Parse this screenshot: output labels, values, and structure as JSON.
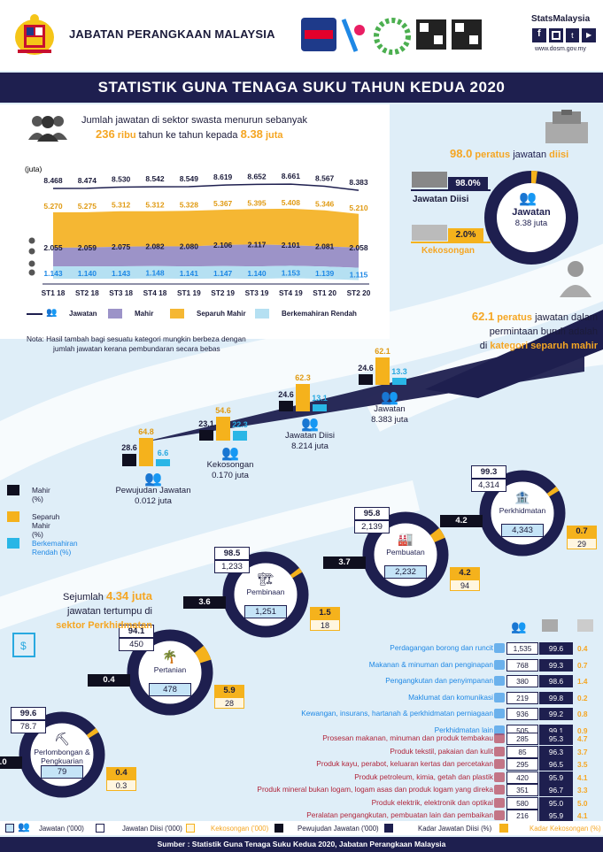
{
  "header": {
    "org": "JABATAN PERANGKAAN MALAYSIA",
    "logo_banci": "BANCI MALAYSIA",
    "logo_hari": "HARI STATISTIK NEGARA",
    "stats": "StatsMalaysia",
    "url": "www.dosm.gov.my"
  },
  "title": "STATISTIK GUNA TENAGA SUKU TAHUN KEDUA 2020",
  "intro": {
    "line1": "Jumlah jawatan di sektor swasta menurun sebanyak",
    "n1": "236",
    "u1": "ribu",
    "mid": "tahun ke tahun kepada",
    "n2": "8.38",
    "u2": "juta"
  },
  "chart_data": {
    "type": "area",
    "ylabel": "(juta)",
    "categories": [
      "ST1 18",
      "ST2 18",
      "ST3 18",
      "ST4 18",
      "ST1 19",
      "ST2 19",
      "ST3 19",
      "ST4 19",
      "ST1 20",
      "ST2 20"
    ],
    "series": [
      {
        "name": "Jawatan",
        "values": [
          "8.468",
          "8.474",
          "8.530",
          "8.542",
          "8.549",
          "8.619",
          "8.652",
          "8.661",
          "8.567",
          "8.383"
        ]
      },
      {
        "name": "Separuh Mahir",
        "values": [
          "5.270",
          "5.275",
          "5.312",
          "5.312",
          "5.328",
          "5.367",
          "5.395",
          "5.408",
          "5.346",
          "5.210"
        ]
      },
      {
        "name": "Mahir",
        "values": [
          "2.055",
          "2.059",
          "2.075",
          "2.082",
          "2.080",
          "2.106",
          "2.117",
          "2.101",
          "2.081",
          "2.058"
        ]
      },
      {
        "name": "Berkemahiran Rendah",
        "values": [
          "1.143",
          "1.140",
          "1.143",
          "1.148",
          "1.141",
          "1.147",
          "1.140",
          "1.153",
          "1.139",
          "1.115"
        ]
      }
    ],
    "colors": {
      "jawatan": "#1e1f4f",
      "mahir": "#9c93c8",
      "separuh": "#f5b733",
      "rendah": "#b5e0f2"
    }
  },
  "chart_legend": [
    "Jawatan",
    "Mahir",
    "Separuh Mahir",
    "Berkemahiran Rendah"
  ],
  "nota": [
    "Nota: Hasil tambah bagi sesuatu kategori mungkin berbeza dengan",
    "jumlah jawatan kerana pembundaran secara bebas"
  ],
  "diisi": {
    "pct": "98.0",
    "txt": "peratus",
    "txt2": "jawatan",
    "txt3": "diisi",
    "box1": "98.0%",
    "lbl1": "Jawatan Diisi",
    "box2": "2.0%",
    "lbl2": "Kekosongan",
    "ring_title": "Jawatan",
    "ring_value": "8.38 juta"
  },
  "separuh": {
    "pct": "62.1",
    "l1": "peratus",
    "l1b": "jawatan dalam",
    "l2": "permintaan buruh adalah",
    "l3": "di",
    "l3b": "kategori separuh mahir"
  },
  "mini_bars": [
    {
      "name": "Jawatan",
      "value": "8.383 juta",
      "v": [
        "24.6",
        "62.1",
        "13.3"
      ]
    },
    {
      "name": "Jawatan Diisi",
      "value": "8.214 juta",
      "v": [
        "24.6",
        "62.3",
        "13.1"
      ]
    },
    {
      "name": "Kekosongan",
      "value": "0.170 juta",
      "v": [
        "23.1",
        "54.6",
        "22.3"
      ]
    },
    {
      "name": "Pewujudan Jawatan",
      "value": "0.012 juta",
      "v": [
        "28.6",
        "64.8",
        "6.6"
      ]
    }
  ],
  "skill_legend": [
    "Mahir (%)",
    "Separuh Mahir (%)",
    "Berkemahiran Rendah (%)"
  ],
  "sectors": [
    {
      "name": "Perkhidmatan",
      "jawatan": "4,343",
      "diisi_pct": "99.3",
      "diisi": "4,314",
      "wujud": "4.2",
      "kosong_pct": "0.7",
      "kosong": "29"
    },
    {
      "name": "Pembuatan",
      "jawatan": "2,232",
      "diisi_pct": "95.8",
      "diisi": "2,139",
      "wujud": "3.7",
      "kosong_pct": "4.2",
      "kosong": "94"
    },
    {
      "name": "Pembinaan",
      "jawatan": "1,251",
      "diisi_pct": "98.5",
      "diisi": "1,233",
      "wujud": "3.6",
      "kosong_pct": "1.5",
      "kosong": "18"
    },
    {
      "name": "Pertanian",
      "jawatan": "478",
      "diisi_pct": "94.1",
      "diisi": "450",
      "wujud": "0.4",
      "kosong_pct": "5.9",
      "kosong": "28"
    },
    {
      "name": "Perlombongan & Pengkuarian",
      "jawatan": "79",
      "diisi_pct": "99.6",
      "diisi": "78.7",
      "wujud": "0.0",
      "kosong_pct": "0.4",
      "kosong": "0.3"
    }
  ],
  "tertumpu": {
    "l1": "Sejumlah",
    "n": "4.34 juta",
    "l2": "jawatan tertumpu di",
    "l3": "sektor Perkhidmatan"
  },
  "services": [
    {
      "name": "Perdagangan borong dan runcit",
      "a": "1,535",
      "b": "99.6",
      "c": "0.4"
    },
    {
      "name": "Makanan & minuman dan penginapan",
      "a": "768",
      "b": "99.3",
      "c": "0.7"
    },
    {
      "name": "Pengangkutan dan penyimpanan",
      "a": "380",
      "b": "98.6",
      "c": "1.4"
    },
    {
      "name": "Maklumat dan komunikasi",
      "a": "219",
      "b": "99.8",
      "c": "0.2"
    },
    {
      "name": "Kewangan, insurans, hartanah & perkhidmatan perniagaan",
      "a": "936",
      "b": "99.2",
      "c": "0.8"
    },
    {
      "name": "Perkhidmatan lain",
      "a": "505",
      "b": "99.1",
      "c": "0.9"
    }
  ],
  "manufacturing": [
    {
      "name": "Prosesan makanan, minuman dan produk tembakau",
      "a": "285",
      "b": "95.3",
      "c": "4.7"
    },
    {
      "name": "Produk tekstil, pakaian dan kulit",
      "a": "85",
      "b": "96.3",
      "c": "3.7"
    },
    {
      "name": "Produk kayu, perabot, keluaran kertas dan percetakan",
      "a": "295",
      "b": "96.5",
      "c": "3.5"
    },
    {
      "name": "Produk petroleum, kimia, getah dan plastik",
      "a": "420",
      "b": "95.9",
      "c": "4.1"
    },
    {
      "name": "Produk mineral bukan logam, logam asas dan produk logam yang direka",
      "a": "351",
      "b": "96.7",
      "c": "3.3"
    },
    {
      "name": "Produk elektrik, elektronik dan optikal",
      "a": "580",
      "b": "95.0",
      "c": "5.0"
    },
    {
      "name": "Peralatan pengangkutan, pembuatan lain dan pembaikan",
      "a": "216",
      "b": "95.9",
      "c": "4.1"
    }
  ],
  "legend": [
    "Jawatan ('000)",
    "Jawatan Diisi ('000)",
    "Kekosongan ('000)",
    "Pewujudan Jawatan ('000)",
    "Kadar Jawatan Diisi (%)",
    "Kadar Kekosongan (%)"
  ],
  "footer": "Sumber : Statistik Guna Tenaga Suku Kedua 2020, Jabatan Perangkaan Malaysia"
}
